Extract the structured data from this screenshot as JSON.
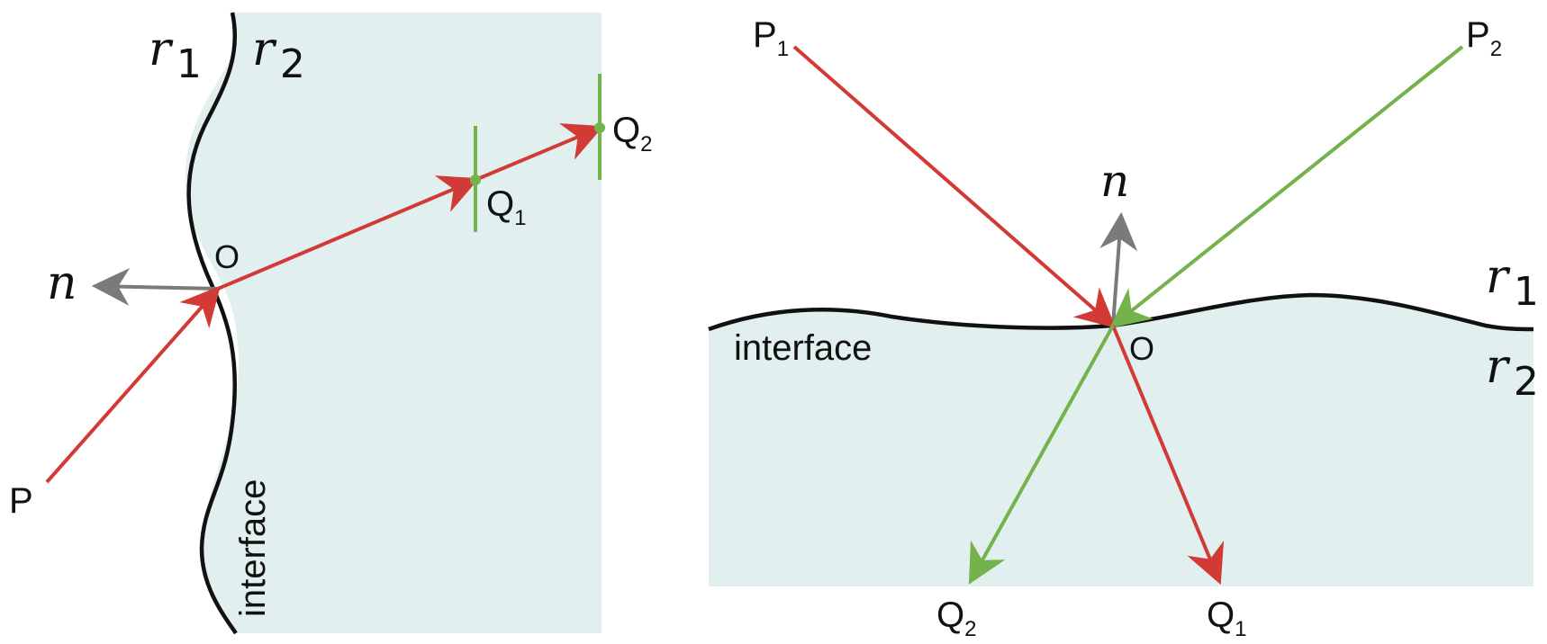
{
  "colors": {
    "medium": "#e1efee",
    "ray_red": "#d23a36",
    "ray_green": "#74b34c",
    "normal_gray": "#7a7a7a",
    "interface": "#111111"
  },
  "left": {
    "medium1_label": {
      "base": "r",
      "sub": "1"
    },
    "medium2_label": {
      "base": "r",
      "sub": "2"
    },
    "normal_label": "n",
    "origin_label": "O",
    "source_label": "P",
    "q1_label": {
      "base": "Q",
      "sub": "1"
    },
    "q2_label": {
      "base": "Q",
      "sub": "2"
    },
    "interface_label": "interface"
  },
  "right": {
    "p1_label": {
      "base": "P",
      "sub": "1"
    },
    "p2_label": {
      "base": "P",
      "sub": "2"
    },
    "normal_label": "n",
    "medium1_label": {
      "base": "r",
      "sub": "1"
    },
    "medium2_label": {
      "base": "r",
      "sub": "2"
    },
    "origin_label": "O",
    "interface_label": "interface",
    "q1_label": {
      "base": "Q",
      "sub": "1"
    },
    "q2_label": {
      "base": "Q",
      "sub": "2"
    }
  }
}
